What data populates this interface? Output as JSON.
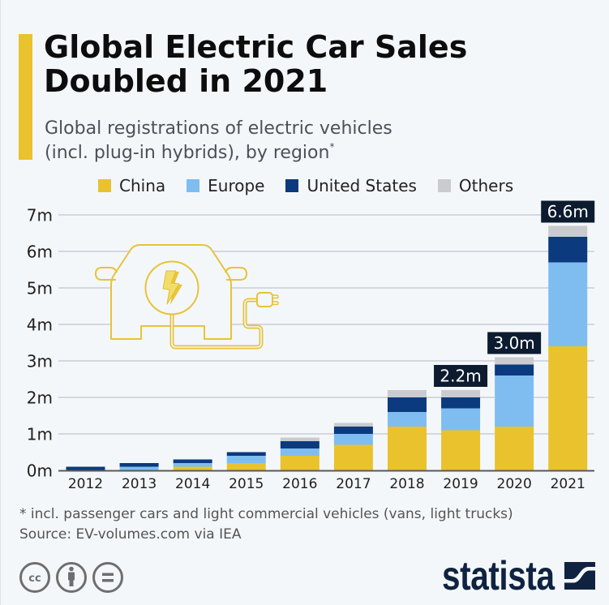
{
  "header": {
    "title_line1": "Global Electric Car Sales",
    "title_line2": "Doubled in 2021",
    "subtitle_line1": "Global registrations of electric vehicles",
    "subtitle_line2": "(incl. plug-in hybrids), by region",
    "subtitle_mark": "*"
  },
  "legend": [
    {
      "label": "China",
      "color": "#e9c22d"
    },
    {
      "label": "Europe",
      "color": "#7fbdf0"
    },
    {
      "label": "United States",
      "color": "#0b3a7e"
    },
    {
      "label": "Others",
      "color": "#c9cbcf"
    }
  ],
  "chart_data": {
    "type": "bar",
    "stacked": true,
    "title": "Global Electric Car Sales Doubled in 2021",
    "subtitle": "Global registrations of electric vehicles (incl. plug-in hybrids), by region*",
    "xlabel": "",
    "ylabel": "",
    "ylim": [
      0,
      7
    ],
    "grid": true,
    "legend_position": "top",
    "categories": [
      "2012",
      "2013",
      "2014",
      "2015",
      "2016",
      "2017",
      "2018",
      "2019",
      "2020",
      "2021"
    ],
    "series": [
      {
        "name": "China",
        "color": "#e9c22d",
        "values": [
          0,
          0,
          0.1,
          0.2,
          0.4,
          0.7,
          1.2,
          1.1,
          1.2,
          3.4
        ]
      },
      {
        "name": "Europe",
        "color": "#7fbdf0",
        "values": [
          0,
          0.1,
          0.1,
          0.2,
          0.2,
          0.3,
          0.4,
          0.6,
          1.4,
          2.3
        ]
      },
      {
        "name": "United States",
        "color": "#0b3a7e",
        "values": [
          0.1,
          0.1,
          0.1,
          0.1,
          0.2,
          0.2,
          0.4,
          0.3,
          0.3,
          0.7
        ]
      },
      {
        "name": "Others",
        "color": "#c9cbcf",
        "values": [
          0,
          0,
          0,
          0,
          0.1,
          0.1,
          0.2,
          0.2,
          0.2,
          0.3
        ]
      }
    ],
    "y_ticks": [
      {
        "value": 0,
        "label": "0m"
      },
      {
        "value": 1,
        "label": "1m"
      },
      {
        "value": 2,
        "label": "2m"
      },
      {
        "value": 3,
        "label": "3m"
      },
      {
        "value": 4,
        "label": "4m"
      },
      {
        "value": 5,
        "label": "5m"
      },
      {
        "value": 6,
        "label": "6m"
      },
      {
        "value": 7,
        "label": "7m"
      }
    ],
    "value_labels": [
      {
        "category": "2019",
        "text": "2.2m"
      },
      {
        "category": "2020",
        "text": "3.0m"
      },
      {
        "category": "2021",
        "text": "6.6m"
      }
    ],
    "value_label_color": "#0c1b2f"
  },
  "footnote": "* incl. passenger cars and light commercial vehicles (vans, light trucks)",
  "source": "Source: EV-volumes.com via IEA",
  "footer": {
    "license_icons": [
      "creative-commons-icon",
      "attribution-icon",
      "no-derivatives-icon"
    ],
    "cc_text": "cc",
    "brand": "statista"
  }
}
